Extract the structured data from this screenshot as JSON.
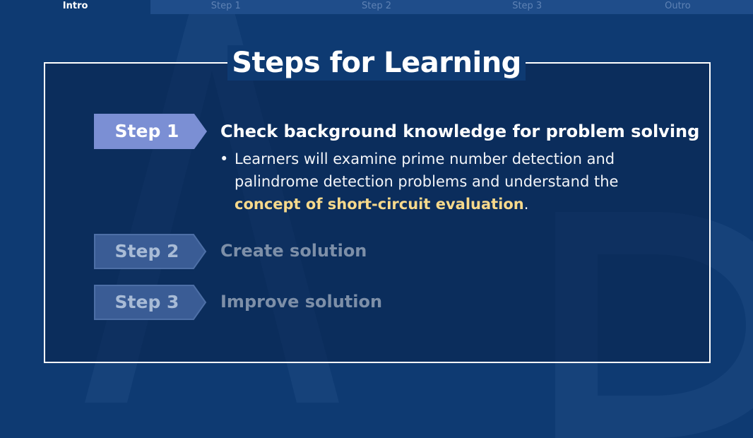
{
  "tabs": [
    {
      "label": "Intro",
      "active": true
    },
    {
      "label": "Step 1",
      "active": false
    },
    {
      "label": "Step 2",
      "active": false
    },
    {
      "label": "Step 3",
      "active": false
    },
    {
      "label": "Outro",
      "active": false
    }
  ],
  "title": "Steps for Learning",
  "steps": [
    {
      "badge": "Step 1",
      "title": "Check background knowledge for problem solving",
      "active": true,
      "bullet": "•",
      "description_before": "Learners will examine prime number detection and palindrome detection problems and understand the ",
      "description_highlight": "concept of short-circuit evaluation",
      "description_after": "."
    },
    {
      "badge": "Step 2",
      "title": "Create solution",
      "active": false
    },
    {
      "badge": "Step 3",
      "title": "Improve solution",
      "active": false
    }
  ],
  "colors": {
    "background": "#0e3a72",
    "active_badge": "#7b8fd4",
    "dim_badge": "#3a5c95",
    "highlight": "#f7d98b"
  }
}
